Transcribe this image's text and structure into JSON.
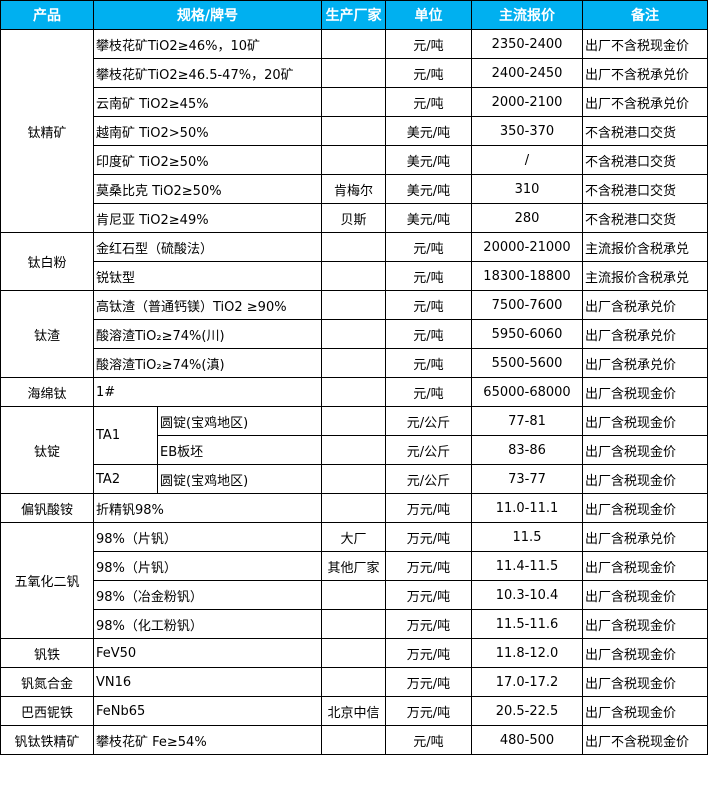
{
  "header": {
    "product": "产品",
    "spec": "规格/牌号",
    "maker": "生产厂家",
    "unit": "单位",
    "price": "主流报价",
    "note": "备注"
  },
  "colors": {
    "header_bg": "#00B0F0",
    "header_text": "#FFFFFF"
  },
  "groups": [
    {
      "product": "钛精矿",
      "rows": [
        {
          "spec": "攀枝花矿TiO2≥46%，10矿",
          "maker": "",
          "unit": "元/吨",
          "price": "2350-2400",
          "note": "出厂不含税现金价"
        },
        {
          "spec": "攀枝花矿TiO2≥46.5-47%，20矿",
          "maker": "",
          "unit": "元/吨",
          "price": "2400-2450",
          "note": "出厂不含税承兑价"
        },
        {
          "spec": "云南矿 TiO2≥45%",
          "maker": "",
          "unit": "元/吨",
          "price": "2000-2100",
          "note": "出厂不含税承兑价"
        },
        {
          "spec": "越南矿 TiO2>50%",
          "maker": "",
          "unit": "美元/吨",
          "price": "350-370",
          "note": "不含税港口交货"
        },
        {
          "spec": "印度矿 TiO2≥50%",
          "maker": "",
          "unit": "美元/吨",
          "price": "/",
          "note": "不含税港口交货"
        },
        {
          "spec": "莫桑比克 TiO2≥50%",
          "maker": "肯梅尔",
          "unit": "美元/吨",
          "price": "310",
          "note": "不含税港口交货"
        },
        {
          "spec": "肯尼亚 TiO2≥49%",
          "maker": "贝斯",
          "unit": "美元/吨",
          "price": "280",
          "note": "不含税港口交货"
        }
      ]
    },
    {
      "product": "钛白粉",
      "rows": [
        {
          "spec": "金红石型（硫酸法）",
          "maker": "",
          "unit": "元/吨",
          "price": "20000-21000",
          "note": "主流报价含税承兑"
        },
        {
          "spec": "锐钛型",
          "maker": "",
          "unit": "元/吨",
          "price": "18300-18800",
          "note": "主流报价含税承兑"
        }
      ]
    },
    {
      "product": "钛渣",
      "rows": [
        {
          "spec": "高钛渣（普通钙镁）TiO2 ≥90%",
          "maker": "",
          "unit": "元/吨",
          "price": "7500-7600",
          "note": "出厂含税承兑价"
        },
        {
          "spec": "酸溶渣TiO₂≥74%(川)",
          "maker": "",
          "unit": "元/吨",
          "price": "5950-6060",
          "note": "出厂含税承兑价"
        },
        {
          "spec": "酸溶渣TiO₂≥74%(滇)",
          "maker": "",
          "unit": "元/吨",
          "price": "5500-5600",
          "note": "出厂含税承兑价"
        }
      ]
    },
    {
      "product": "海绵钛",
      "rows": [
        {
          "spec": "1#",
          "maker": "",
          "unit": "元/吨",
          "price": "65000-68000",
          "note": "出厂含税现金价"
        }
      ]
    },
    {
      "product": "钛锭",
      "rows": [
        {
          "grade": "TA1",
          "form": "圆锭(宝鸡地区)",
          "unit": "元/公斤",
          "price": "77-81",
          "note": "出厂含税现金价"
        },
        {
          "grade": "TA1",
          "form": "EB板坯",
          "unit": "元/公斤",
          "price": "83-86",
          "note": "出厂含税现金价"
        },
        {
          "grade": "TA2",
          "form": "圆锭(宝鸡地区)",
          "unit": "元/公斤",
          "price": "73-77",
          "note": "出厂含税现金价"
        }
      ]
    },
    {
      "product": "偏钒酸铵",
      "rows": [
        {
          "spec": "折精钒98%",
          "maker": "",
          "unit": "万元/吨",
          "price": "11.0-11.1",
          "note": "出厂含税现金价"
        }
      ]
    },
    {
      "product": "五氧化二钒",
      "rows": [
        {
          "spec": "98%（片钒）",
          "maker": "大厂",
          "unit": "万元/吨",
          "price": "11.5",
          "note": "出厂含税承兑价"
        },
        {
          "spec": "98%（片钒）",
          "maker": "其他厂家",
          "unit": "万元/吨",
          "price": "11.4-11.5",
          "note": "出厂含税现金价"
        },
        {
          "spec": "98%（冶金粉钒）",
          "maker": "",
          "unit": "万元/吨",
          "price": "10.3-10.4",
          "note": "出厂含税现金价"
        },
        {
          "spec": "98%（化工粉钒）",
          "maker": "",
          "unit": "万元/吨",
          "price": "11.5-11.6",
          "note": "出厂含税现金价"
        }
      ]
    },
    {
      "product": "钒铁",
      "rows": [
        {
          "spec": "FeV50",
          "maker": "",
          "unit": "万元/吨",
          "price": "11.8-12.0",
          "note": "出厂含税现金价"
        }
      ]
    },
    {
      "product": "钒氮合金",
      "rows": [
        {
          "spec": "VN16",
          "maker": "",
          "unit": "万元/吨",
          "price": "17.0-17.2",
          "note": "出厂含税现金价"
        }
      ]
    },
    {
      "product": "巴西铌铁",
      "rows": [
        {
          "spec": "FeNb65",
          "maker": "北京中信",
          "unit": "万元/吨",
          "price": "20.5-22.5",
          "note": "出厂含税现金价"
        }
      ]
    },
    {
      "product": "钒钛铁精矿",
      "rows": [
        {
          "spec": "攀枝花矿 Fe≥54%",
          "maker": "",
          "unit": "元/吨",
          "price": "480-500",
          "note": "出厂不含税现金价"
        }
      ]
    }
  ]
}
